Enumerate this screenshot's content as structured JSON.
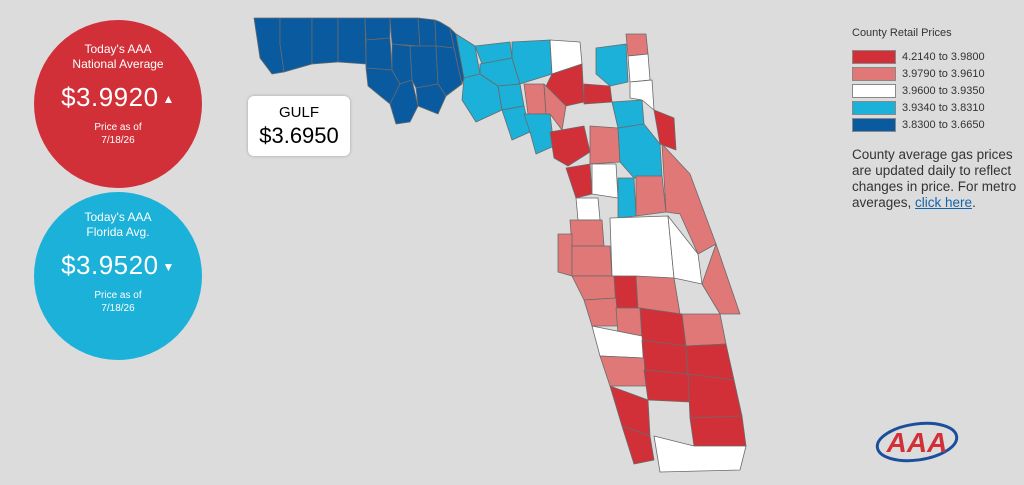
{
  "national": {
    "line1": "Today's AAA",
    "line2": "National Average",
    "price": "$3.9920",
    "arrow": "▲",
    "asof_label": "Price as of",
    "asof_date": "7/18/26"
  },
  "florida": {
    "line1": "Today's AAA",
    "line2": "Florida Avg.",
    "price": "$3.9520",
    "arrow": "▼",
    "asof_label": "Price as of",
    "asof_date": "7/18/26"
  },
  "tooltip": {
    "county": "GULF",
    "price": "$3.6950"
  },
  "legend": {
    "title": "County Retail Prices",
    "ranges": [
      {
        "label": "4.2140 to 3.9800",
        "color": "#d23038"
      },
      {
        "label": "3.9790 to 3.9610",
        "color": "#e07878"
      },
      {
        "label": "3.9600 to 3.9350",
        "color": "#ffffff"
      },
      {
        "label": "3.9340 to 3.8310",
        "color": "#1bb1d9"
      },
      {
        "label": "3.8300 to 3.6650",
        "color": "#0a5aa0"
      }
    ],
    "note": "County average gas prices are updated daily to reflect changes in price. For metro averages, ",
    "link": "click here",
    "note_end": "."
  },
  "colors": {
    "red": "#d23038",
    "pink": "#e07878",
    "white": "#ffffff",
    "cyan": "#1bb1d9",
    "blue": "#0a5aa0",
    "background": "#dcdcdc"
  },
  "logo": {
    "text": "AAA"
  }
}
